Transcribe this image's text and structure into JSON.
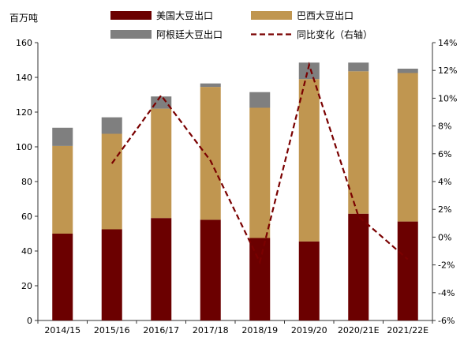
{
  "chart_data": {
    "type": "bar",
    "stacked": true,
    "left_unit_label": "百万吨",
    "categories": [
      "2014/15",
      "2015/16",
      "2016/17",
      "2017/18",
      "2018/19",
      "2019/20",
      "2020/21E",
      "2021/22E"
    ],
    "series": [
      {
        "name": "美国大豆出口",
        "color": "#6b0000",
        "values": [
          50,
          52.5,
          59,
          58,
          47.5,
          45.5,
          61.5,
          57
        ]
      },
      {
        "name": "巴西大豆出口",
        "color": "#c09650",
        "values": [
          50.5,
          55,
          63,
          76.5,
          75,
          93.5,
          82,
          85.5
        ]
      },
      {
        "name": "阿根廷大豆出口",
        "color": "#7f7f7f",
        "values": [
          10.5,
          9.5,
          7,
          2,
          9,
          9.5,
          5,
          2.5
        ]
      }
    ],
    "line_series": {
      "name": "同比变化（右轴）",
      "color": "#7a0000",
      "axis": "right",
      "values": [
        null,
        5.3,
        10.2,
        5.5,
        -1.8,
        12.4,
        1.5,
        -1.6
      ]
    },
    "ylim_left": [
      0,
      160
    ],
    "yticks_left": [
      0,
      20,
      40,
      60,
      80,
      100,
      120,
      140,
      160
    ],
    "ylim_right": [
      -6,
      14
    ],
    "yticks_right": [
      "-6%",
      "-4%",
      "-2%",
      "0%",
      "2%",
      "4%",
      "6%",
      "8%",
      "10%",
      "12%",
      "14%"
    ],
    "grid": false,
    "legend_position": "top"
  }
}
